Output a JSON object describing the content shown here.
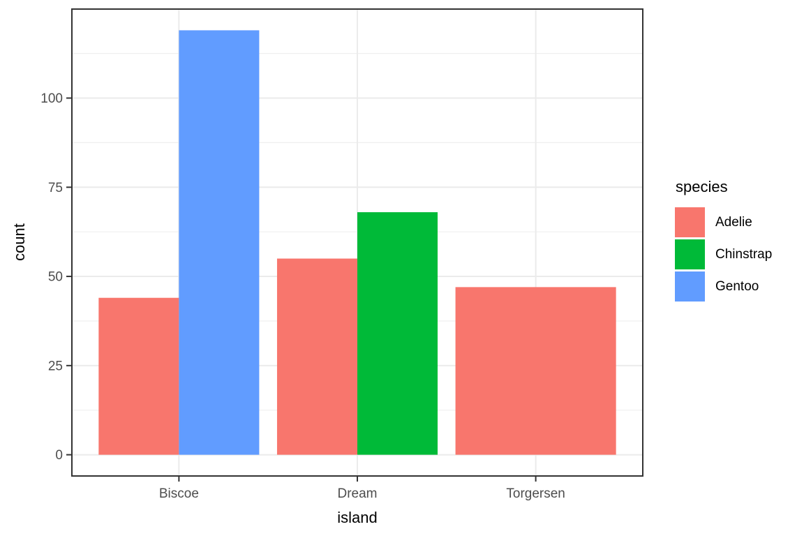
{
  "chart_data": {
    "type": "bar",
    "title": "",
    "xlabel": "island",
    "ylabel": "count",
    "categories": [
      "Biscoe",
      "Dream",
      "Torgersen"
    ],
    "series": [
      {
        "name": "Adelie",
        "color": "#F8766D",
        "values": [
          44,
          55,
          47
        ]
      },
      {
        "name": "Chinstrap",
        "color": "#00BA38",
        "values": [
          null,
          68,
          null
        ]
      },
      {
        "name": "Gentoo",
        "color": "#619CFF",
        "values": [
          119,
          null,
          null
        ]
      }
    ],
    "y_ticks": [
      0,
      25,
      50,
      75,
      100
    ],
    "y_minor_ticks": [
      12.5,
      37.5,
      62.5,
      87.5,
      112.5
    ],
    "ylim": [
      -5.95,
      124.95
    ],
    "bar_group_width": 0.9,
    "grid": true,
    "legend": {
      "title": "species",
      "position": "right",
      "entries": [
        "Adelie",
        "Chinstrap",
        "Gentoo"
      ]
    },
    "theme": {
      "background": "#FFFFFF",
      "panel_background": "#FFFFFF",
      "panel_border": "#333333",
      "grid_major": "#EBEBEB",
      "grid_minor": "#EFEFEF",
      "axis_text": "#4D4D4D",
      "axis_title": "#000000",
      "tick_mark": "#333333"
    }
  }
}
